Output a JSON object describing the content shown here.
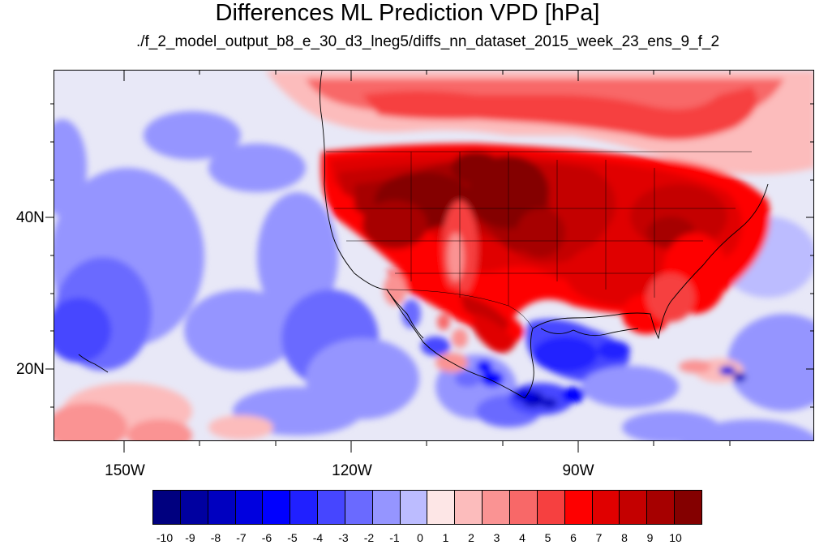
{
  "title": "Differences ML Prediction VPD [hPa]",
  "subtitle": "./f_2_model_output_b8_e_30_d3_lneg5/diffs_nn_dataset_2015_week_23_ens_9_f_2",
  "lat_labels": [
    "40N",
    "20N"
  ],
  "lon_labels": [
    "150W",
    "120W",
    "90W"
  ],
  "colorbar": {
    "labels": [
      "-10",
      "-9",
      "-8",
      "-7",
      "-6",
      "-5",
      "-4",
      "-3",
      "-2",
      "-1",
      "0",
      "1",
      "2",
      "3",
      "4",
      "5",
      "6",
      "7",
      "8",
      "9",
      "10"
    ],
    "colors": [
      "#00007f",
      "#0000a0",
      "#0000c0",
      "#0000df",
      "#0000ff",
      "#2020ff",
      "#4646ff",
      "#6a6aff",
      "#9595ff",
      "#bcbcff",
      "#e8e8f7",
      "#fde6e6",
      "#fcbcbc",
      "#fa9393",
      "#f86868",
      "#f64040",
      "#fe0000",
      "#e00000",
      "#c40000",
      "#a60000",
      "#840000"
    ]
  }
}
